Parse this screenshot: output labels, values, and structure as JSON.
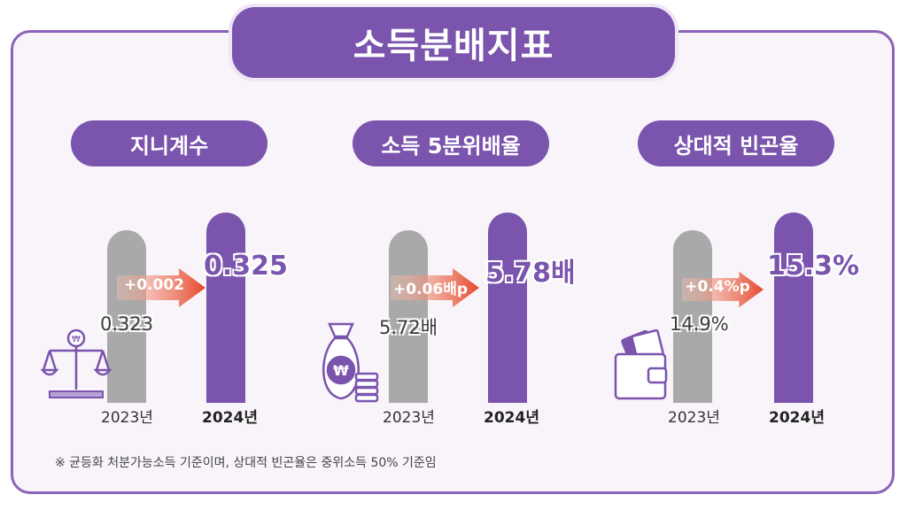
{
  "title": "소득분배지표",
  "footnote": "※ 균등화 처분가능소득 기준이며, 상대적 빈곤율은 중위소득 50% 기준임",
  "colors": {
    "accent": "#7a54ad",
    "previous": "#a9a9a9",
    "arrow": "#e5482a",
    "border": "#8b63b8"
  },
  "panels": [
    {
      "label": "지니계수",
      "prev_year": "2023년",
      "curr_year": "2024년",
      "prev_value": "0.323",
      "curr_value": "0.325",
      "change": "+0.002",
      "icon": "scale-icon"
    },
    {
      "label": "소득 5분위배율",
      "prev_year": "2023년",
      "curr_year": "2024년",
      "prev_value": "5.72배",
      "curr_value": "5.78배",
      "change": "+0.06배p",
      "icon": "money-bag-icon"
    },
    {
      "label": "상대적 빈곤율",
      "prev_year": "2023년",
      "curr_year": "2024년",
      "prev_value": "14.9%",
      "curr_value": "15.3%",
      "change": "+0.4%p",
      "icon": "wallet-icon"
    }
  ],
  "chart_data": [
    {
      "type": "bar",
      "title": "지니계수",
      "categories": [
        "2023년",
        "2024년"
      ],
      "values": [
        0.323,
        0.325
      ]
    },
    {
      "type": "bar",
      "title": "소득 5분위배율",
      "categories": [
        "2023년",
        "2024년"
      ],
      "values": [
        5.72,
        5.78
      ]
    },
    {
      "type": "bar",
      "title": "상대적 빈곤율",
      "categories": [
        "2023년",
        "2024년"
      ],
      "values": [
        14.9,
        15.3
      ]
    }
  ]
}
